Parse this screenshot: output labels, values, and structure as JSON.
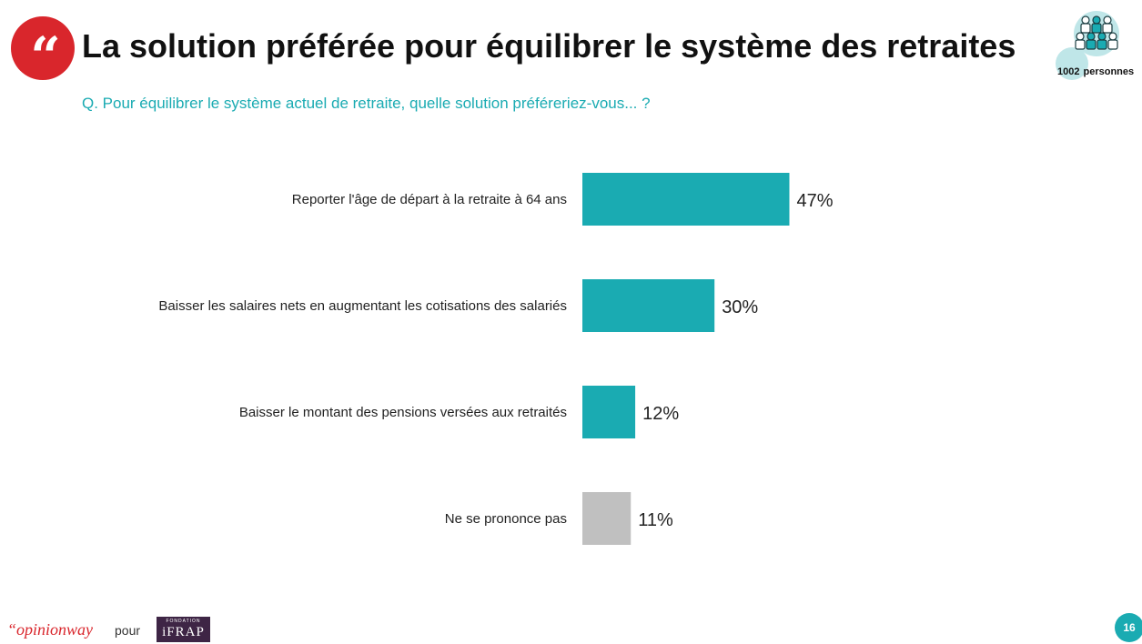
{
  "header": {
    "title": "La solution préférée pour équilibrer le système des retraites",
    "question": "Q. Pour équilibrer le système actuel de retraite, quelle solution préféreriez-vous... ?",
    "quote_glyph": "“",
    "sample_count": "1002",
    "sample_unit": "personnes",
    "sample_icon": "people-group-icon"
  },
  "colors": {
    "accent": "#1aabb2",
    "brand_red": "#d9262c",
    "neutral_bar": "#c0c0c0",
    "ifrap_purple": "#3e2545"
  },
  "chart_data": {
    "type": "bar",
    "orientation": "horizontal",
    "categories": [
      "Reporter l'âge de départ à la retraite à 64 ans",
      "Baisser les salaires nets en augmentant les cotisations des salariés",
      "Baisser le montant des pensions versées aux retraités",
      "Ne se prononce pas"
    ],
    "values": [
      47,
      30,
      12,
      11
    ],
    "value_labels": [
      "47%",
      "30%",
      "12%",
      "11%"
    ],
    "bar_colors": [
      "#1aabb2",
      "#1aabb2",
      "#1aabb2",
      "#c0c0c0"
    ],
    "unit": "%",
    "xlim": [
      0,
      100
    ],
    "grid": false,
    "legend": "none"
  },
  "footer": {
    "brand": "“opinionway",
    "pour": "pour",
    "ifrap_small": "FONDATION",
    "ifrap": "iFRAP",
    "page_number": "16"
  }
}
